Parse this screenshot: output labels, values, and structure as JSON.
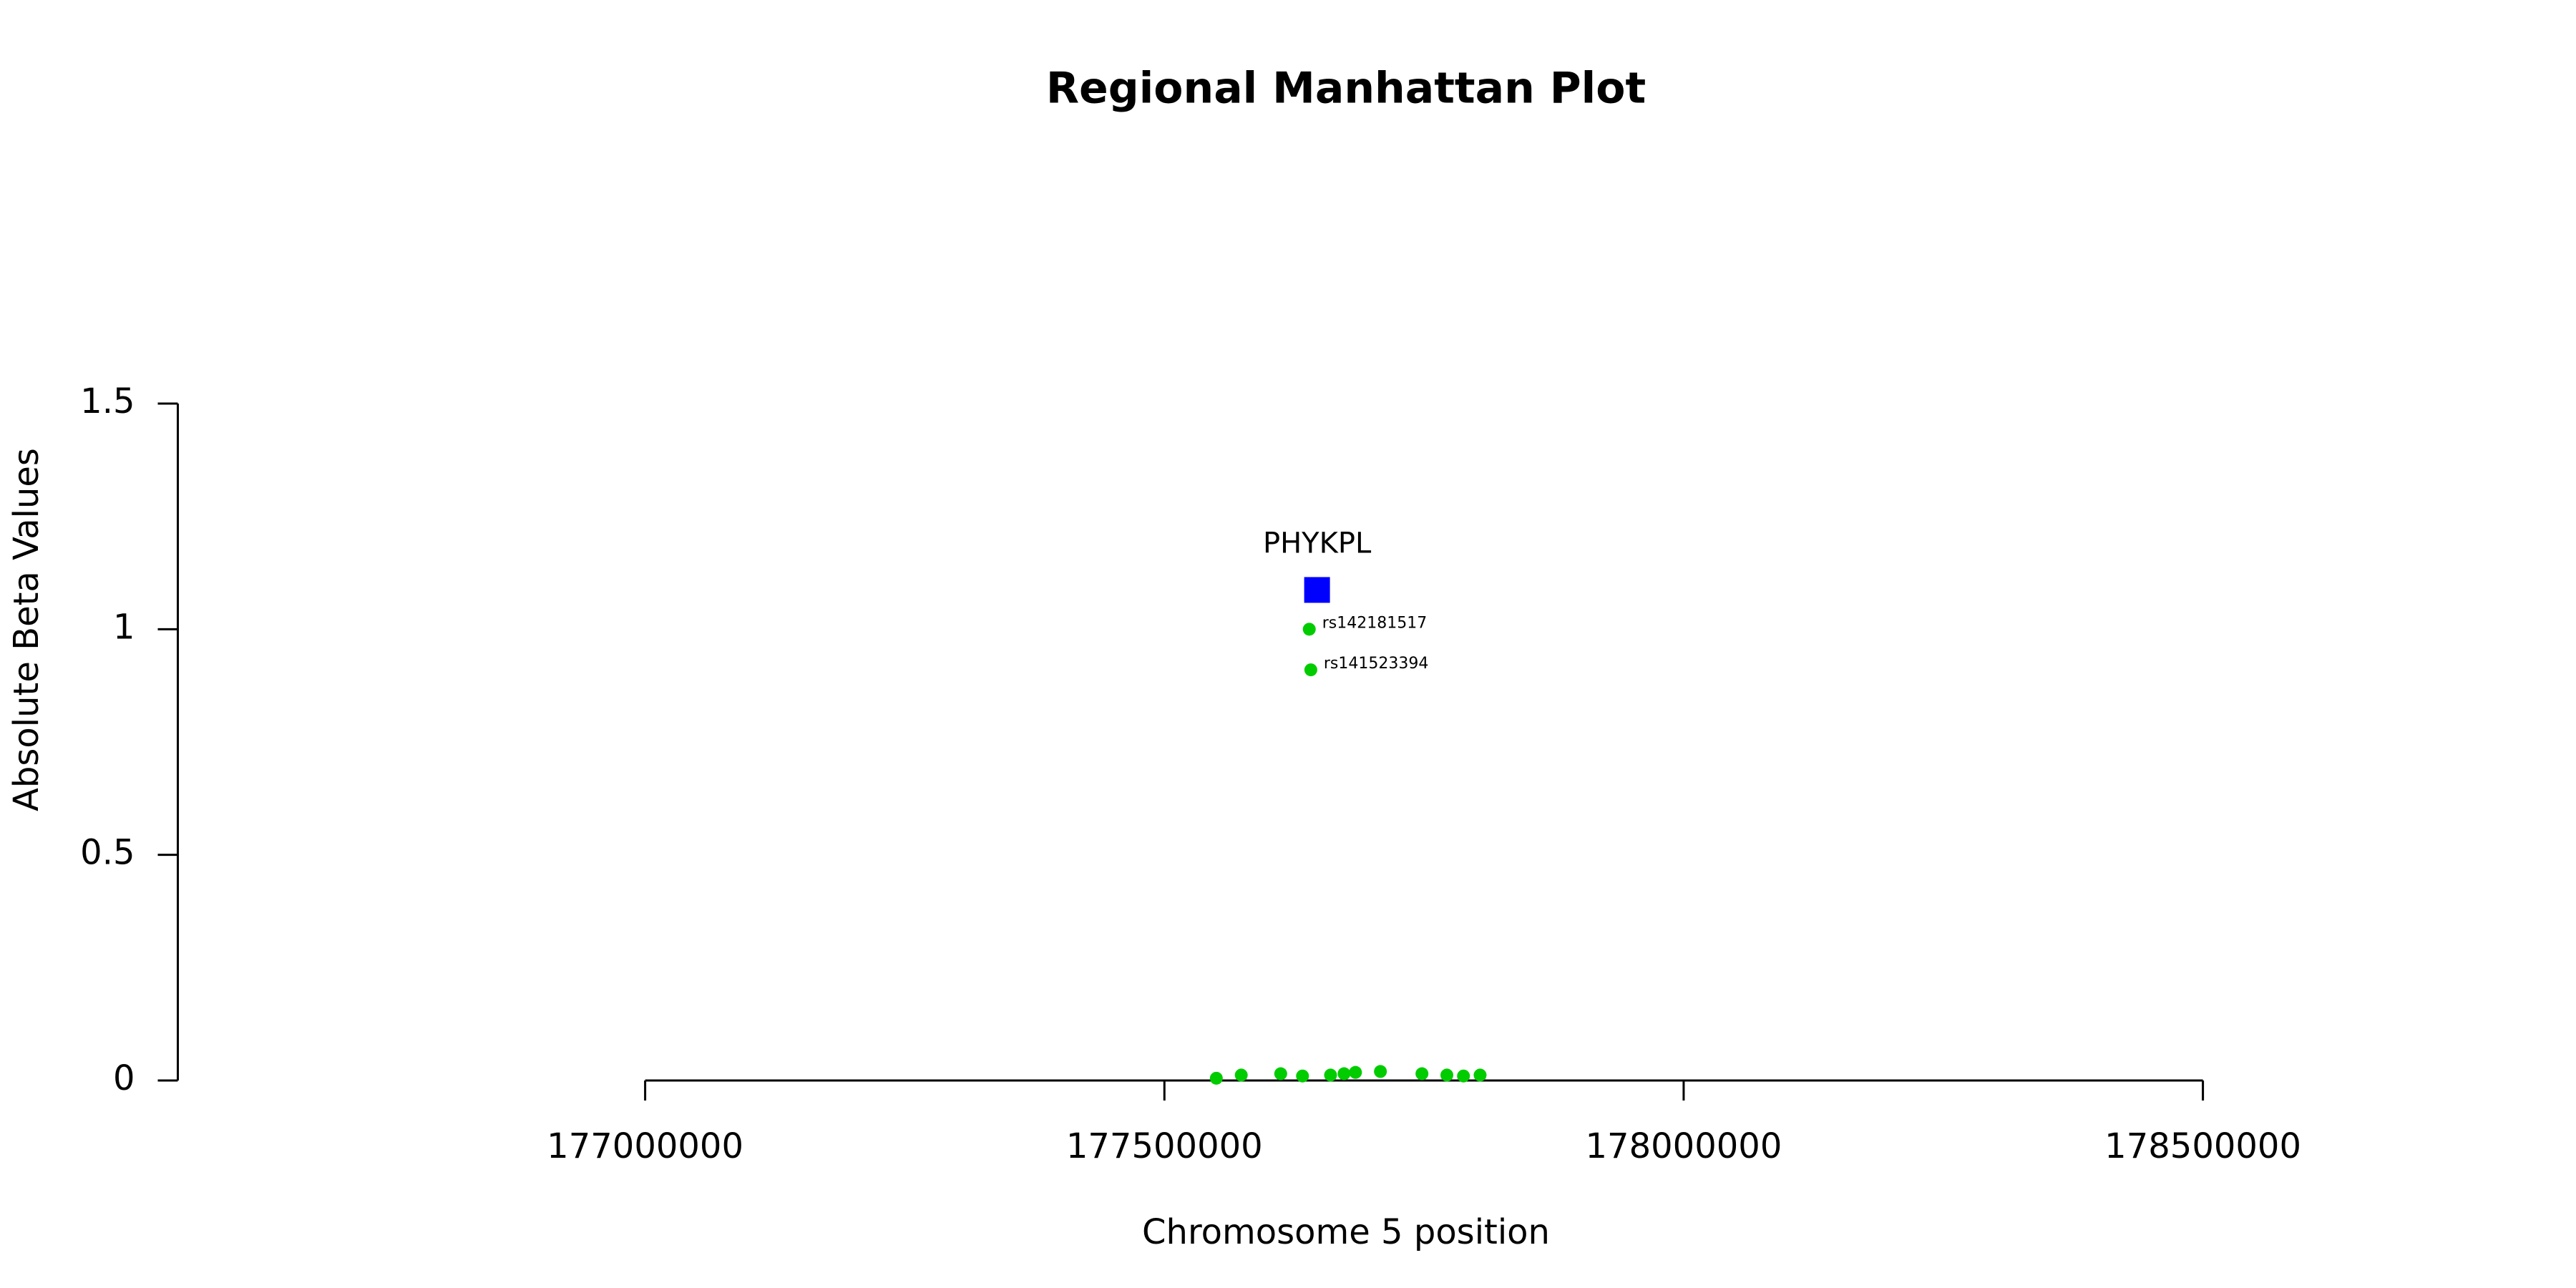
{
  "chart_data": {
    "type": "scatter",
    "title": "Regional Manhattan Plot",
    "x_label": "Chromosome 5 position",
    "y_label": "Absolute Beta Values",
    "xlim": [
      176550000,
      178800000
    ],
    "xticks": [
      177000000,
      177500000,
      178000000,
      178500000
    ],
    "ylim": [
      0,
      1.5
    ],
    "yticks": [
      0,
      0.5,
      1.0,
      1.5
    ],
    "series": [
      {
        "color": "#00cc00",
        "x": [
          177639500,
          177641000,
          177550000,
          177574000,
          177612000,
          177633000,
          177660000,
          177673000,
          177684000,
          177708000,
          177748000,
          177772000,
          177788000,
          177804000
        ],
        "values": [
          1.0,
          0.91,
          0.005,
          0.012,
          0.015,
          0.01,
          0.012,
          0.015,
          0.018,
          0.02,
          0.015,
          0.012,
          0.01,
          0.012
        ],
        "labels": [
          "rs142181517",
          "rs141523394",
          null,
          null,
          null,
          null,
          null,
          null,
          null,
          null,
          null,
          null,
          null,
          null
        ]
      },
      {
        "color": "#0000ff",
        "marker": "square",
        "x": [
          177647000
        ],
        "values": [
          1.087
        ],
        "labels": [
          "PHYKPL"
        ]
      }
    ]
  }
}
